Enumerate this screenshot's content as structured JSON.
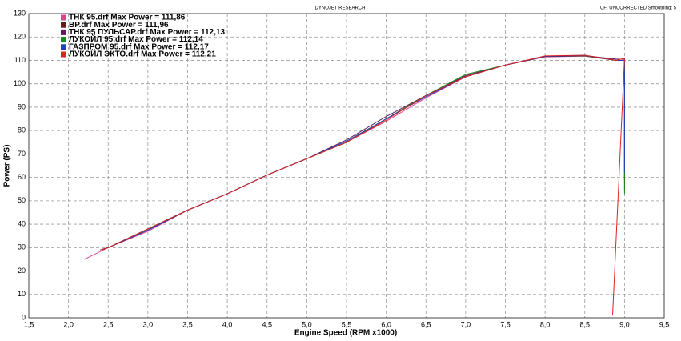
{
  "chart_data": {
    "type": "line",
    "title": "DYNOJET RESEARCH",
    "subtitle": "CF: UNCORRECTED  Smoothing: 5",
    "x_label": "Engine Speed (RPM x1000)",
    "y_label": "Power (PS)",
    "xlim": [
      1.5,
      9.5
    ],
    "xticks": [
      {
        "value": 1.5,
        "label": "1,5"
      },
      {
        "value": 2.0,
        "label": "2,0"
      },
      {
        "value": 2.5,
        "label": "2,5"
      },
      {
        "value": 3.0,
        "label": "3,0"
      },
      {
        "value": 3.5,
        "label": "3,5"
      },
      {
        "value": 4.0,
        "label": "4,0"
      },
      {
        "value": 4.5,
        "label": "4,5"
      },
      {
        "value": 5.0,
        "label": "5,0"
      },
      {
        "value": 5.5,
        "label": "5,5"
      },
      {
        "value": 6.0,
        "label": "6,0"
      },
      {
        "value": 6.5,
        "label": "6,5"
      },
      {
        "value": 7.0,
        "label": "7,0"
      },
      {
        "value": 7.5,
        "label": "7,5"
      },
      {
        "value": 8.0,
        "label": "8,0"
      },
      {
        "value": 8.5,
        "label": "8,5"
      },
      {
        "value": 9.0,
        "label": "9,0"
      },
      {
        "value": 9.5,
        "label": "9,5"
      }
    ],
    "ylim": [
      0,
      130
    ],
    "yticks": [
      0,
      10,
      20,
      30,
      40,
      50,
      60,
      70,
      80,
      90,
      100,
      110,
      120,
      130
    ],
    "grid": true,
    "series": [
      {
        "name": "ТНК 95.drf Max Power = 111,86",
        "color": "#e0408c",
        "x": [
          2.2,
          2.5,
          3.0,
          3.5,
          4.0,
          4.5,
          5.0,
          5.5,
          6.0,
          6.5,
          7.0,
          7.5,
          8.0,
          8.5,
          8.9,
          9.0,
          9.0
        ],
        "values": [
          25,
          30,
          37,
          46,
          53,
          61,
          68,
          75,
          84,
          94,
          103,
          108,
          111.5,
          111.8,
          110,
          110,
          58
        ]
      },
      {
        "name": "BP.drf Max Power = 111,96",
        "color": "#6b1a1a",
        "x": [
          2.4,
          2.5,
          3.0,
          3.5,
          4.0,
          4.5,
          5.0,
          5.5,
          6.0,
          6.5,
          7.0,
          7.5,
          8.0,
          8.5,
          8.9,
          9.0,
          9.0
        ],
        "values": [
          29,
          30,
          38,
          46,
          53,
          61,
          68,
          75,
          85,
          95,
          103,
          108,
          111.6,
          111.9,
          110,
          110,
          55
        ]
      },
      {
        "name": "ТНК 95 ПУЛЬСАР.drf Max Power = 112,13",
        "color": "#5a1f5a",
        "x": [
          2.4,
          2.5,
          3.0,
          3.5,
          4.0,
          4.5,
          5.0,
          5.5,
          6.0,
          6.5,
          7.0,
          7.5,
          8.0,
          8.5,
          8.9,
          9.0,
          9.0
        ],
        "values": [
          29,
          30,
          37.5,
          46,
          53,
          61,
          68,
          76,
          86,
          95,
          103.5,
          108,
          111.8,
          112,
          110.5,
          110.5,
          60
        ]
      },
      {
        "name": "ЛУКОЙЛ 95.drf Max Power = 112,14",
        "color": "#1a8a1a",
        "x": [
          2.4,
          2.5,
          3.0,
          3.5,
          4.0,
          4.5,
          5.0,
          5.5,
          6.0,
          6.5,
          7.0,
          7.5,
          8.0,
          8.5,
          8.9,
          9.0,
          9.0
        ],
        "values": [
          29,
          30,
          38,
          46,
          53,
          61,
          68,
          75,
          85,
          95,
          104,
          108,
          111.8,
          112,
          110,
          110,
          53
        ]
      },
      {
        "name": "ГАЗПРОМ 95.drf Max Power = 112,17",
        "color": "#2040c0",
        "x": [
          2.4,
          2.5,
          3.0,
          3.5,
          4.0,
          4.5,
          5.0,
          5.5,
          6.0,
          6.5,
          7.0,
          7.5,
          8.0,
          8.5,
          8.9,
          9.0,
          9.0
        ],
        "values": [
          29,
          30,
          37.5,
          46,
          53,
          61,
          68,
          75.5,
          85,
          94.5,
          103,
          108,
          111.7,
          112.1,
          110,
          110,
          62
        ]
      },
      {
        "name": "ЛУКОЙЛ ЭКТО.drf Max Power = 112,21",
        "color": "#e02020",
        "x": [
          2.4,
          2.5,
          3.0,
          3.5,
          4.0,
          4.5,
          5.0,
          5.5,
          6.0,
          6.5,
          7.0,
          7.5,
          8.0,
          8.5,
          8.9,
          9.0,
          8.85
        ],
        "values": [
          29,
          30,
          38,
          46,
          53,
          61,
          68,
          75,
          84.5,
          95,
          103,
          108,
          111.9,
          112.2,
          110,
          111,
          1
        ]
      }
    ]
  }
}
